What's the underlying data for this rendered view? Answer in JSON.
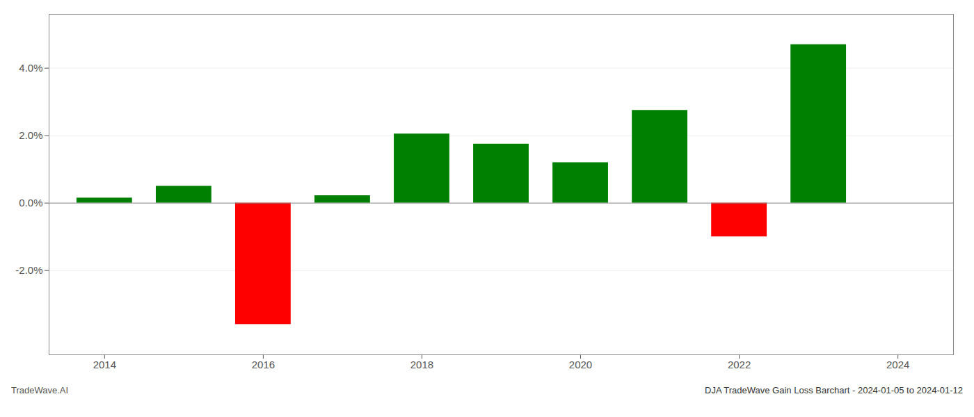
{
  "chart_data": {
    "type": "bar",
    "title": "DJA TradeWave Gain Loss Barchart - 2024-01-05 to 2024-01-12",
    "annotations": [
      "TradeWave.AI"
    ],
    "x": [
      2014,
      2015,
      2016,
      2017,
      2018,
      2019,
      2020,
      2021,
      2022,
      2023
    ],
    "values": [
      0.15,
      0.5,
      -3.6,
      0.22,
      2.05,
      1.75,
      1.2,
      2.75,
      -1.0,
      4.7
    ],
    "colors": [
      "#008000",
      "#008000",
      "#ff0000",
      "#008000",
      "#008000",
      "#008000",
      "#008000",
      "#008000",
      "#ff0000",
      "#008000"
    ],
    "xlim": [
      2013.3,
      2024.7
    ],
    "xticks": [
      2014,
      2016,
      2018,
      2020,
      2022,
      2024
    ],
    "ylim": [
      -4.5,
      5.6
    ],
    "yticks": [
      {
        "value": -2.0,
        "label": "-2.0%"
      },
      {
        "value": 0.0,
        "label": "0.0%"
      },
      {
        "value": 2.0,
        "label": "2.0%"
      },
      {
        "value": 4.0,
        "label": "4.0%"
      }
    ],
    "grid": true
  }
}
